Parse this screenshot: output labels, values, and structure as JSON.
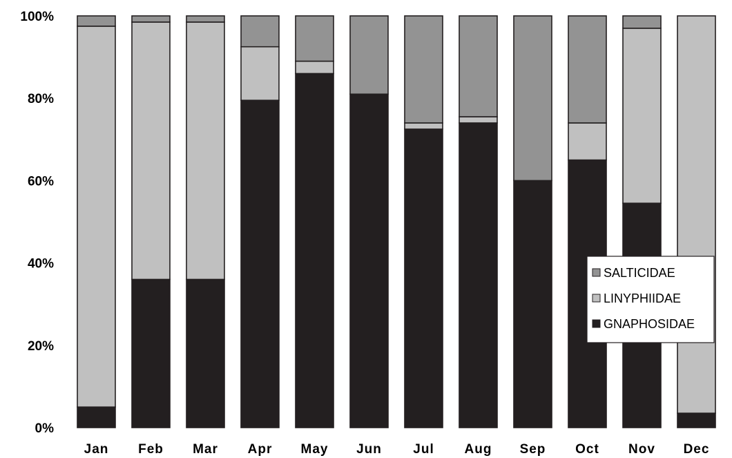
{
  "chart_data": {
    "type": "bar",
    "stacked": true,
    "normalized": true,
    "categories": [
      "Jan",
      "Feb",
      "Mar",
      "Apr",
      "May",
      "Jun",
      "Jul",
      "Aug",
      "Sep",
      "Oct",
      "Nov",
      "Dec"
    ],
    "series": [
      {
        "name": "GNAPHOSIDAE",
        "color": "#231f20",
        "values": [
          5,
          36,
          36,
          79.5,
          86,
          81,
          72.5,
          74,
          60,
          65,
          54.5,
          3.5
        ]
      },
      {
        "name": "LINYPHIIDAE",
        "color": "#c0c0c0",
        "values": [
          92.5,
          62.5,
          62.5,
          13,
          3,
          0,
          1.5,
          1.5,
          0,
          9,
          42.5,
          96.5
        ]
      },
      {
        "name": "SALTICIDAE",
        "color": "#939393",
        "values": [
          2.5,
          1.5,
          1.5,
          7.5,
          11,
          19,
          26,
          24.5,
          40,
          26,
          3,
          0
        ]
      }
    ],
    "y_ticks": [
      "0%",
      "20%",
      "40%",
      "60%",
      "80%",
      "100%"
    ],
    "ylim": [
      0,
      100
    ],
    "legend": {
      "position": "right",
      "order": [
        "SALTICIDAE",
        "LINYPHIIDAE",
        "GNAPHOSIDAE"
      ]
    },
    "title": "",
    "xlabel": "",
    "ylabel": ""
  }
}
